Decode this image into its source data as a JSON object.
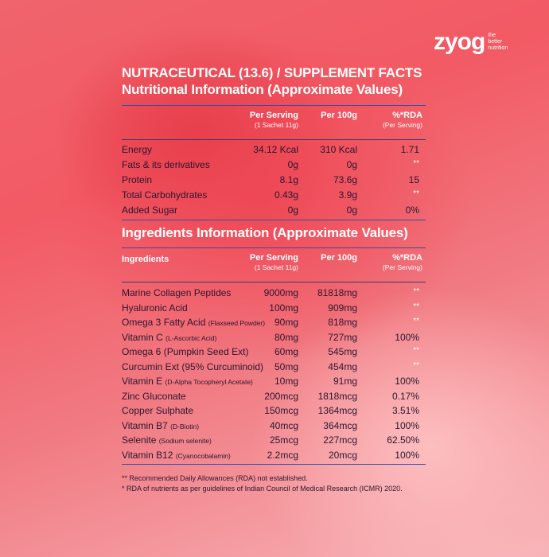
{
  "brand": {
    "name": "zyog",
    "tagline_1": "the",
    "tagline_2": "better",
    "tagline_3": "nutrition"
  },
  "title": "NUTRACEUTICAL (13.6)  /  SUPPLEMENT FACTS",
  "nutrition": {
    "heading": "Nutritional Information (Approximate Values)",
    "col_serving": "Per Serving",
    "col_serving_sub": "(1 Sachet 11g)",
    "col_100g": "Per 100g",
    "col_rda": "%*RDA",
    "col_rda_sub": "(Per Serving)",
    "rows": [
      {
        "name": "Energy",
        "serving": "34.12 Kcal",
        "per100": "310 Kcal",
        "rda": "1.71"
      },
      {
        "name": "Fats & its derivatives",
        "serving": "0g",
        "per100": "0g",
        "rda": "**"
      },
      {
        "name": "Protein",
        "serving": "8.1g",
        "per100": "73.6g",
        "rda": "15"
      },
      {
        "name": "Total Carbohydrates",
        "serving": "0.43g",
        "per100": "3.9g",
        "rda": "**"
      },
      {
        "name": "Added Sugar",
        "serving": "0g",
        "per100": "0g",
        "rda": "0%"
      }
    ]
  },
  "ingredients": {
    "heading": "Ingredients Information (Approximate Values)",
    "col_name": "Ingredients",
    "col_serving": "Per Serving",
    "col_serving_sub": "(1 Sachet 11g)",
    "col_100g": "Per 100g",
    "col_rda": "%*RDA",
    "col_rda_sub": "(Per Serving)",
    "rows": [
      {
        "name": "Marine Collagen Peptides",
        "sub": "",
        "serving": "9000mg",
        "per100": "81818mg",
        "rda": "**"
      },
      {
        "name": "Hyaluronic Acid",
        "sub": "",
        "serving": "100mg",
        "per100": "909mg",
        "rda": "**"
      },
      {
        "name": "Omega 3 Fatty Acid",
        "sub": "(Flaxseed Powder)",
        "serving": "90mg",
        "per100": "818mg",
        "rda": "**"
      },
      {
        "name": "Vitamin C",
        "sub": "(L-Ascorbic Acid)",
        "serving": "80mg",
        "per100": "727mg",
        "rda": "100%"
      },
      {
        "name": "Omega 6 (Pumpkin Seed Ext)",
        "sub": "",
        "serving": "60mg",
        "per100": "545mg",
        "rda": "**"
      },
      {
        "name": "Curcumin Ext (95% Curcuminoid)",
        "sub": "",
        "serving": "50mg",
        "per100": "454mg",
        "rda": "**"
      },
      {
        "name": "Vitamin E",
        "sub": "(D-Alpha Tocopheryl Acetate)",
        "serving": "10mg",
        "per100": "91mg",
        "rda": "100%"
      },
      {
        "name": "Zinc Gluconate",
        "sub": "",
        "serving": "200mcg",
        "per100": "1818mcg",
        "rda": "0.17%"
      },
      {
        "name": "Copper Sulphate",
        "sub": "",
        "serving": "150mcg",
        "per100": "1364mcg",
        "rda": "3.51%"
      },
      {
        "name": "Vitamin B7",
        "sub": "(D-Biotin)",
        "serving": "40mcg",
        "per100": "364mcg",
        "rda": "100%"
      },
      {
        "name": "Selenite",
        "sub": "(Sodium selenite)",
        "serving": "25mcg",
        "per100": "227mcg",
        "rda": "62.50%"
      },
      {
        "name": "Vitamin B12",
        "sub": "(Cyanocobalamin)",
        "serving": "2.2mcg",
        "per100": "20mcg",
        "rda": "100%"
      }
    ]
  },
  "footnotes": [
    "** Recommended Daily Allowances (RDA) not established.",
    "* RDA of nutrients as per guidelines of Indian Council of Medical Research (ICMR) 2020."
  ]
}
